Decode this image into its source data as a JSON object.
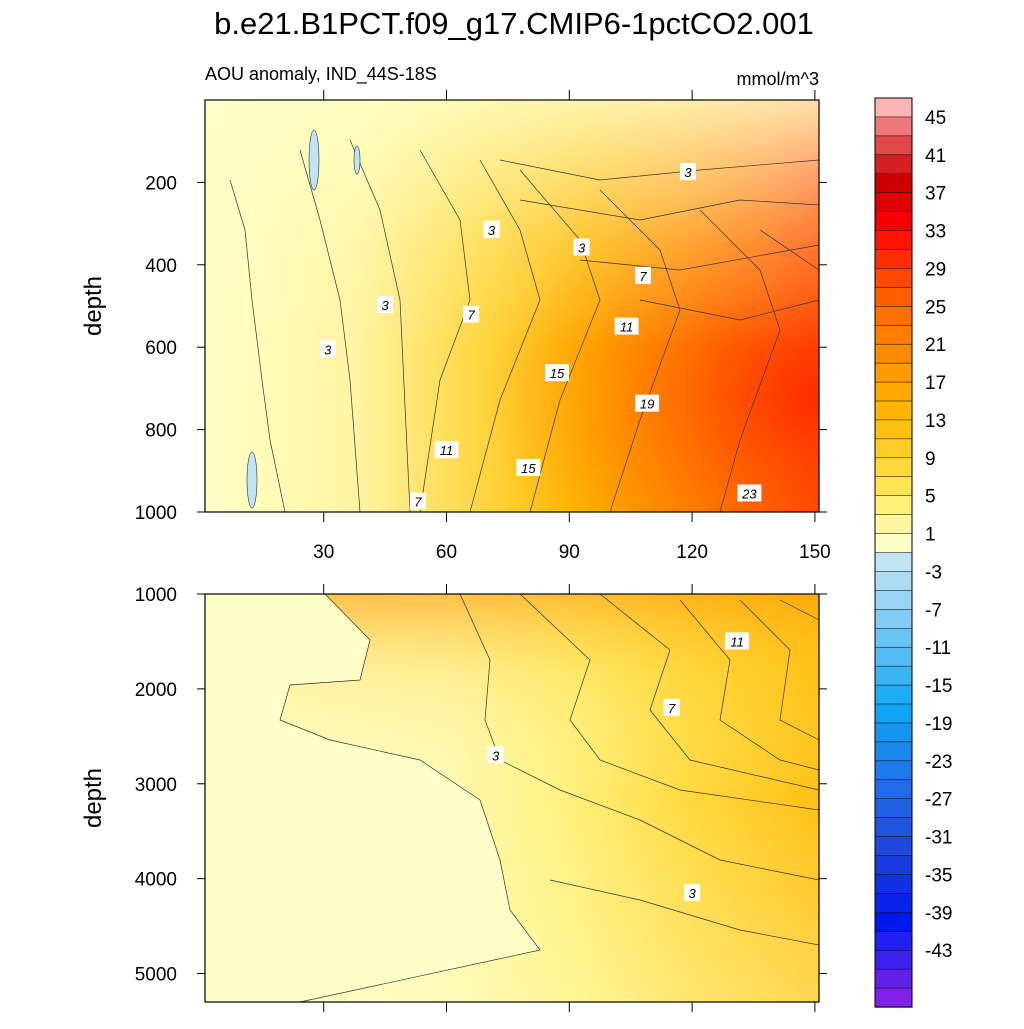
{
  "chart_data": {
    "type": "contour",
    "title": "b.e21.B1PCT.f09_g17.CMIP6-1pctCO2.001",
    "subtitle_left": "AOU anomaly, IND_44S-18S",
    "subtitle_right": "mmol/m^3",
    "xlabel": "",
    "xlim": [
      1,
      151
    ],
    "xticks": [
      30,
      60,
      90,
      120,
      150
    ],
    "xtick_labels": [
      "30",
      "60",
      "90",
      "120",
      "150"
    ],
    "panels": [
      {
        "name": "upper",
        "ylabel": "depth",
        "ylim": [
          1000,
          0
        ],
        "yticks": [
          200,
          400,
          600,
          800,
          1000
        ],
        "ytick_labels": [
          "200",
          "400",
          "600",
          "800",
          "1000"
        ],
        "contour_labels": [
          {
            "text": "3",
            "x": 119,
            "y": 175
          },
          {
            "text": "3",
            "x": 71,
            "y": 315
          },
          {
            "text": "3",
            "x": 93,
            "y": 358
          },
          {
            "text": "3",
            "x": 45,
            "y": 498
          },
          {
            "text": "3",
            "x": 31,
            "y": 605
          },
          {
            "text": "7",
            "x": 108,
            "y": 427
          },
          {
            "text": "7",
            "x": 66,
            "y": 521
          },
          {
            "text": "7",
            "x": 53,
            "y": 975
          },
          {
            "text": "11",
            "x": 104,
            "y": 550
          },
          {
            "text": "11",
            "x": 60,
            "y": 850
          },
          {
            "text": "15",
            "x": 87,
            "y": 663
          },
          {
            "text": "15",
            "x": 80,
            "y": 893
          },
          {
            "text": "19",
            "x": 109,
            "y": 737
          },
          {
            "text": "23",
            "x": 134,
            "y": 955
          }
        ]
      },
      {
        "name": "lower",
        "ylabel": "depth",
        "ylim": [
          5300,
          1000
        ],
        "yticks": [
          1000,
          2000,
          3000,
          4000,
          5000
        ],
        "ytick_labels": [
          "1000",
          "2000",
          "3000",
          "4000",
          "5000"
        ],
        "contour_labels": [
          {
            "text": "11",
            "x": 131,
            "y": 1500
          },
          {
            "text": "7",
            "x": 115,
            "y": 2200
          },
          {
            "text": "3",
            "x": 72,
            "y": 2700
          },
          {
            "text": "3",
            "x": 120,
            "y": 4150
          }
        ]
      }
    ],
    "colorbar": {
      "labels": [
        "45",
        "41",
        "37",
        "33",
        "29",
        "25",
        "21",
        "17",
        "13",
        "9",
        "5",
        "1",
        "-3",
        "-7",
        "-11",
        "-15",
        "-19",
        "-23",
        "-27",
        "-31",
        "-35",
        "-39",
        "-43"
      ],
      "colors": [
        "#fcb4b4",
        "#ee7878",
        "#e04848",
        "#d42020",
        "#cc0000",
        "#e00000",
        "#f40000",
        "#ff1400",
        "#ff2e00",
        "#ff4800",
        "#ff5e00",
        "#ff7000",
        "#ff7e00",
        "#ff8c00",
        "#ff9a00",
        "#ffa800",
        "#ffb400",
        "#ffc014",
        "#ffcc28",
        "#ffd83c",
        "#ffe450",
        "#fff07a",
        "#fff6a0",
        "#ffffc8",
        "#c0e4f4",
        "#acdcf4",
        "#98d4f4",
        "#82ccf4",
        "#6cc4f4",
        "#54bcf4",
        "#3cb4f4",
        "#1eacf4",
        "#10a4f4",
        "#1496f0",
        "#1888ec",
        "#1c7aea",
        "#206ce6",
        "#2060e2",
        "#2054de",
        "#2048da",
        "#183cde",
        "#1030e4",
        "#0824ea",
        "#0018f0",
        "#2020f0",
        "#4020ec",
        "#6020e8",
        "#8020e8"
      ]
    }
  }
}
